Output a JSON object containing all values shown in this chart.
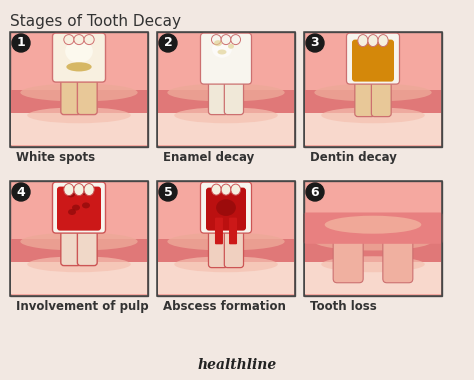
{
  "title": "Stages of Tooth Decay",
  "title_fontsize": 11,
  "title_color": "#333333",
  "bg_color": "#f2e8e2",
  "stages": [
    {
      "num": "1",
      "label": "White spots"
    },
    {
      "num": "2",
      "label": "Enamel decay"
    },
    {
      "num": "3",
      "label": "Dentin decay"
    },
    {
      "num": "4",
      "label": "Involvement of pulp"
    },
    {
      "num": "5",
      "label": "Abscess formation"
    },
    {
      "num": "6",
      "label": "Tooth loss"
    }
  ],
  "watermark": "healthline",
  "box_fill": "#f0a0a0",
  "box_border": "#333333",
  "gum_dark": "#e07878",
  "gum_light": "#f0b0a8",
  "label_fontsize": 8.5,
  "num_fontsize": 9
}
